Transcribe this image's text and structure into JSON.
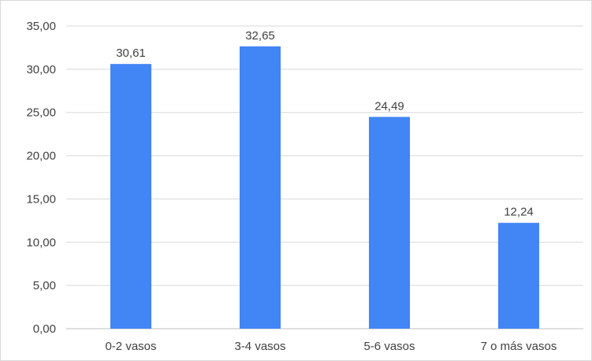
{
  "chart_data": {
    "type": "bar",
    "categories": [
      "0-2 vasos",
      "3-4 vasos",
      "5-6 vasos",
      "7 o más vasos"
    ],
    "values": [
      30.61,
      32.65,
      24.49,
      12.24
    ],
    "data_labels": [
      "30,61",
      "32,65",
      "24,49",
      "12,24"
    ],
    "y_ticks": [
      "0,00",
      "5,00",
      "10,00",
      "15,00",
      "20,00",
      "25,00",
      "30,00",
      "35,00"
    ],
    "ylim": [
      0,
      35
    ],
    "y_step": 5,
    "grid": true,
    "legend": "none",
    "title": "",
    "xlabel": "",
    "ylabel": "",
    "colors": {
      "bar": "#4285f4",
      "grid": "#d9d9d9",
      "text": "#404040"
    }
  }
}
